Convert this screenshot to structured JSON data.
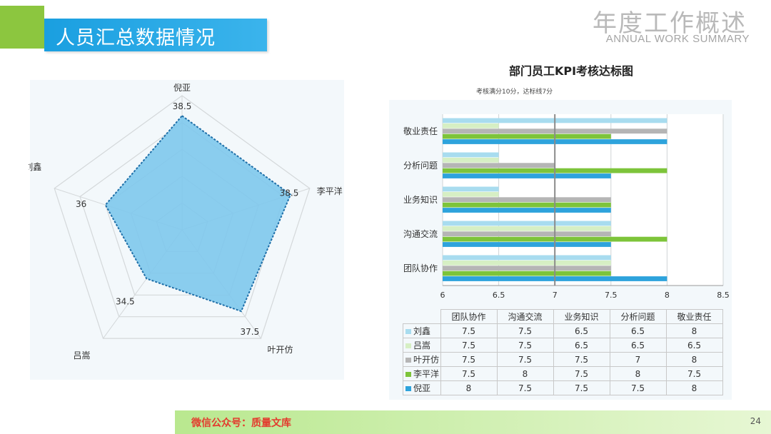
{
  "header": {
    "title": "人员汇总数据情况",
    "big_title": "年度工作概述",
    "subtitle": "ANNUAL WORK SUMMARY"
  },
  "footer": {
    "text": "微信公众号：质量文库",
    "page_number": "24"
  },
  "colors": {
    "accent_green": "#8cc63f",
    "header_blue": "#1a9fe0",
    "radar_fill": "#7ec8ec",
    "footer_red": "#e33b2e"
  },
  "chart_data": [
    {
      "type": "radar",
      "axes": [
        "倪亚",
        "李平洋",
        "叶开仿",
        "吕嵩",
        "刘鑫"
      ],
      "values": [
        38.5,
        38.5,
        37.5,
        34.5,
        36
      ],
      "value_labels": [
        "38.5",
        "38.5",
        "37.5",
        "34.5",
        "36"
      ],
      "rings": 5
    },
    {
      "type": "bar",
      "orientation": "horizontal",
      "title": "部门员工KPI考核达标图",
      "subtitle": "考核满分10分，达标线7分",
      "categories": [
        "团队协作",
        "沟通交流",
        "业务知识",
        "分析问题",
        "敬业责任"
      ],
      "series": [
        {
          "name": "刘鑫",
          "color": "#a8dcef",
          "values": [
            7.5,
            7.5,
            6.5,
            6.5,
            8
          ]
        },
        {
          "name": "吕嵩",
          "color": "#d6efc4",
          "values": [
            7.5,
            7.5,
            6.5,
            6.5,
            6.5
          ]
        },
        {
          "name": "叶开仿",
          "color": "#b5b5b5",
          "values": [
            7.5,
            7.5,
            7.5,
            7,
            8
          ]
        },
        {
          "name": "李平洋",
          "color": "#7dc43a",
          "values": [
            7.5,
            8,
            7.5,
            8,
            7.5
          ]
        },
        {
          "name": "倪亚",
          "color": "#2ea3dc",
          "values": [
            8,
            7.5,
            7.5,
            7.5,
            8
          ]
        }
      ],
      "xlim": [
        6,
        8.5
      ],
      "x_ticks": [
        "6",
        "6.5",
        "7",
        "7.5",
        "8",
        "8.5"
      ],
      "reference_line": 7,
      "grid": true,
      "legend": "table-below"
    }
  ]
}
